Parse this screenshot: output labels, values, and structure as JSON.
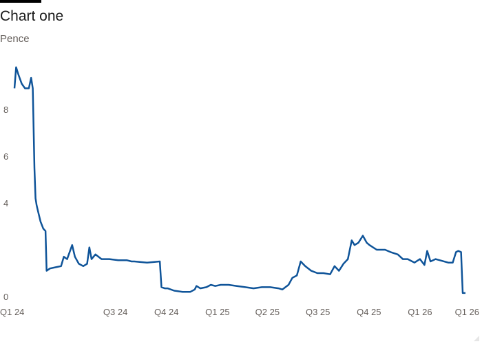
{
  "chart_data": {
    "type": "line",
    "title": "Chart one",
    "subtitle": "Pence",
    "ylim": [
      0,
      10
    ],
    "y_ticks": [
      {
        "value": 0,
        "label": "0"
      },
      {
        "value": 4,
        "label": "4"
      },
      {
        "value": 6,
        "label": "6"
      },
      {
        "value": 8,
        "label": "8"
      }
    ],
    "x_ticks": [
      {
        "date": "2024-01-01",
        "label": "Q1 24"
      },
      {
        "date": "2024-07-01",
        "label": "Q3 24"
      },
      {
        "date": "2024-10-01",
        "label": "Q4 24"
      },
      {
        "date": "2025-01-01",
        "label": "Q1 25"
      },
      {
        "date": "2025-04-01",
        "label": "Q2 25"
      },
      {
        "date": "2025-07-01",
        "label": "Q3 25"
      },
      {
        "date": "2025-10-01",
        "label": "Q4 25"
      },
      {
        "date": "2026-01-01",
        "label": "Q1 26"
      },
      {
        "date": "2026-03-24",
        "label": "Q1 26"
      }
    ],
    "grid": false,
    "series": [
      {
        "color": "#0f5499",
        "points": [
          [
            "2024-01-01",
            8.9
          ],
          [
            "2024-01-04",
            9.8
          ],
          [
            "2024-01-08",
            9.5
          ],
          [
            "2024-01-14",
            9.1
          ],
          [
            "2024-01-20",
            8.9
          ],
          [
            "2024-01-27",
            8.9
          ],
          [
            "2024-01-31",
            9.35
          ],
          [
            "2024-02-03",
            8.9
          ],
          [
            "2024-02-06",
            5.5
          ],
          [
            "2024-02-08",
            4.2
          ],
          [
            "2024-02-10",
            3.9
          ],
          [
            "2024-02-13",
            3.6
          ],
          [
            "2024-02-17",
            3.2
          ],
          [
            "2024-02-22",
            2.9
          ],
          [
            "2024-02-26",
            2.8
          ],
          [
            "2024-02-28",
            1.1
          ],
          [
            "2024-03-05",
            1.2
          ],
          [
            "2024-03-15",
            1.25
          ],
          [
            "2024-03-25",
            1.3
          ],
          [
            "2024-03-30",
            1.7
          ],
          [
            "2024-04-05",
            1.6
          ],
          [
            "2024-04-14",
            2.2
          ],
          [
            "2024-04-19",
            1.7
          ],
          [
            "2024-04-26",
            1.4
          ],
          [
            "2024-05-04",
            1.3
          ],
          [
            "2024-05-11",
            1.4
          ],
          [
            "2024-05-15",
            2.1
          ],
          [
            "2024-05-19",
            1.6
          ],
          [
            "2024-05-26",
            1.8
          ],
          [
            "2024-06-06",
            1.6
          ],
          [
            "2024-06-20",
            1.6
          ],
          [
            "2024-07-06",
            1.55
          ],
          [
            "2024-07-22",
            1.55
          ],
          [
            "2024-07-30",
            1.5
          ],
          [
            "2024-08-04",
            1.5
          ],
          [
            "2024-08-27",
            1.45
          ],
          [
            "2024-09-19",
            1.5
          ],
          [
            "2024-09-22",
            0.4
          ],
          [
            "2024-09-28",
            0.35
          ],
          [
            "2024-10-03",
            0.35
          ],
          [
            "2024-10-15",
            0.25
          ],
          [
            "2024-10-30",
            0.2
          ],
          [
            "2024-11-13",
            0.2
          ],
          [
            "2024-11-21",
            0.3
          ],
          [
            "2024-11-24",
            0.45
          ],
          [
            "2024-12-01",
            0.35
          ],
          [
            "2024-12-12",
            0.4
          ],
          [
            "2024-12-20",
            0.5
          ],
          [
            "2024-12-28",
            0.45
          ],
          [
            "2025-01-07",
            0.5
          ],
          [
            "2025-01-21",
            0.5
          ],
          [
            "2025-02-05",
            0.45
          ],
          [
            "2025-02-20",
            0.4
          ],
          [
            "2025-03-07",
            0.35
          ],
          [
            "2025-03-22",
            0.4
          ],
          [
            "2025-04-06",
            0.4
          ],
          [
            "2025-04-21",
            0.35
          ],
          [
            "2025-04-28",
            0.3
          ],
          [
            "2025-05-09",
            0.5
          ],
          [
            "2025-05-16",
            0.8
          ],
          [
            "2025-05-24",
            0.9
          ],
          [
            "2025-05-31",
            1.5
          ],
          [
            "2025-06-08",
            1.3
          ],
          [
            "2025-06-19",
            1.1
          ],
          [
            "2025-06-30",
            1.0
          ],
          [
            "2025-07-11",
            1.0
          ],
          [
            "2025-07-23",
            0.95
          ],
          [
            "2025-07-31",
            1.3
          ],
          [
            "2025-08-08",
            1.1
          ],
          [
            "2025-08-16",
            1.4
          ],
          [
            "2025-08-24",
            1.6
          ],
          [
            "2025-08-31",
            2.4
          ],
          [
            "2025-09-05",
            2.2
          ],
          [
            "2025-09-12",
            2.3
          ],
          [
            "2025-09-20",
            2.6
          ],
          [
            "2025-09-27",
            2.3
          ],
          [
            "2025-10-02",
            2.2
          ],
          [
            "2025-10-15",
            2.0
          ],
          [
            "2025-10-30",
            2.0
          ],
          [
            "2025-11-09",
            1.9
          ],
          [
            "2025-11-22",
            1.8
          ],
          [
            "2025-12-01",
            1.6
          ],
          [
            "2025-12-10",
            1.6
          ],
          [
            "2025-12-22",
            1.45
          ],
          [
            "2026-01-01",
            1.6
          ],
          [
            "2026-01-09",
            1.35
          ],
          [
            "2026-01-14",
            1.95
          ],
          [
            "2026-01-20",
            1.5
          ],
          [
            "2026-01-29",
            1.6
          ],
          [
            "2026-02-06",
            1.55
          ],
          [
            "2026-02-21",
            1.45
          ],
          [
            "2026-03-01",
            1.45
          ],
          [
            "2026-03-07",
            1.9
          ],
          [
            "2026-03-11",
            1.95
          ],
          [
            "2026-03-16",
            1.9
          ],
          [
            "2026-03-19",
            0.15
          ],
          [
            "2026-03-24",
            0.15
          ]
        ]
      }
    ]
  }
}
